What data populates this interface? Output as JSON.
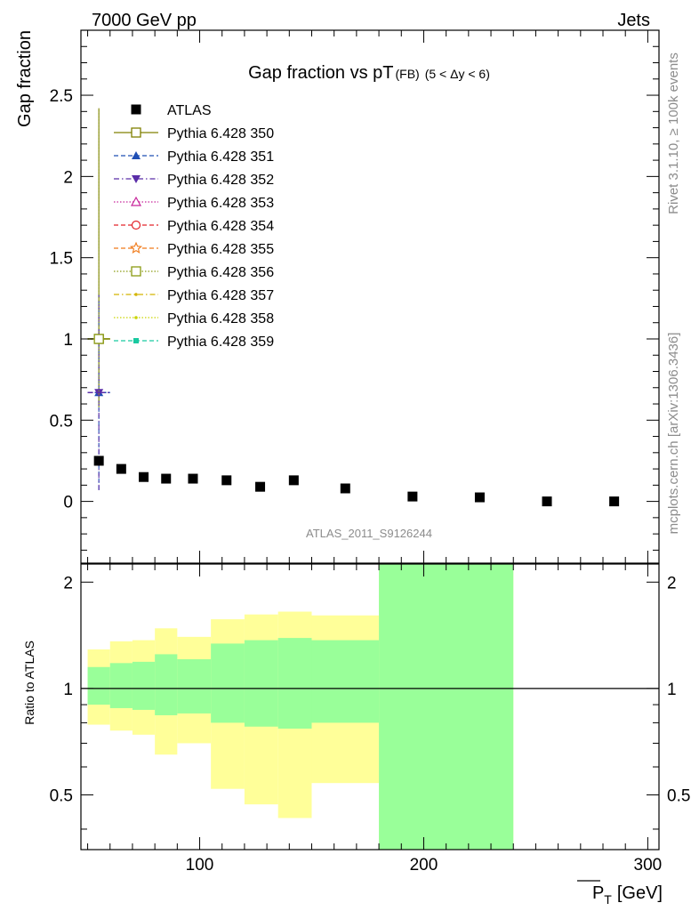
{
  "header": {
    "energy_label": "7000 GeV pp",
    "process_label": "Jets"
  },
  "side_labels": {
    "rivet": "Rivet 3.1.10, ≥ 100k events",
    "mcplots": "mcplots.cern.ch [arXiv:1306.3436]"
  },
  "watermark": "ATLAS_2011_S9126244",
  "colors": {
    "yellow_band": "#ffff99",
    "green_band": "#99ff99"
  },
  "chart_data": [
    {
      "type": "scatter",
      "title": "Gap fraction vs pT",
      "title_sub": "(FB)",
      "title_range": "(5 < Δy < 6)",
      "ylabel": "Gap fraction",
      "xlim": [
        47,
        305
      ],
      "ylim": [
        -0.38,
        2.9
      ],
      "yticks": [
        "0",
        "0.5",
        "1",
        "1.5",
        "2",
        "2.5"
      ],
      "ytick_values": [
        0,
        0.5,
        1,
        1.5,
        2,
        2.5
      ],
      "legend_position": "upper-left",
      "series": [
        {
          "name": "ATLAS",
          "color": "#000000",
          "marker": "filled-square",
          "x": [
            55,
            65,
            75,
            85,
            97,
            112,
            127,
            142,
            165,
            195,
            225,
            255,
            285
          ],
          "y": [
            0.25,
            0.2,
            0.15,
            0.14,
            0.14,
            0.13,
            0.09,
            0.13,
            0.08,
            0.03,
            0.025,
            0.0,
            0.0
          ],
          "yerr": [
            0.03,
            0.02,
            0.02,
            0.02,
            0.02,
            0.02,
            0.015,
            0.02,
            0.015,
            0.01,
            0.01,
            0.01,
            0.01
          ]
        },
        {
          "name": "Pythia 6.428 350",
          "color": "#808000",
          "marker": "open-square",
          "dash": "solid",
          "x": [
            55
          ],
          "y": [
            1.0
          ],
          "yerr_low": [
            0.42
          ],
          "yerr_high": [
            1.42
          ]
        },
        {
          "name": "Pythia 6.428 351",
          "color": "#1f4fb5",
          "marker": "filled-triangle-up",
          "dash": "dashed",
          "x": [
            55
          ],
          "y": [
            0.67
          ],
          "yerr_low": [
            0.6
          ],
          "yerr_high": [
            0.6
          ]
        },
        {
          "name": "Pythia 6.428 352",
          "color": "#5a2da8",
          "marker": "filled-triangle-down",
          "dash": "dashdot",
          "x": [
            55
          ],
          "y": [
            0.67
          ],
          "yerr_low": [
            0.6
          ],
          "yerr_high": [
            0.6
          ]
        },
        {
          "name": "Pythia 6.428 353",
          "color": "#c7259b",
          "marker": "open-triangle-up",
          "dash": "dotted",
          "x": [],
          "y": []
        },
        {
          "name": "Pythia 6.428 354",
          "color": "#e3242b",
          "marker": "open-circle",
          "dash": "dashed",
          "x": [],
          "y": []
        },
        {
          "name": "Pythia 6.428 355",
          "color": "#f07a1a",
          "marker": "open-star",
          "dash": "dashed",
          "x": [],
          "y": []
        },
        {
          "name": "Pythia 6.428 356",
          "color": "#8a9a12",
          "marker": "open-square",
          "dash": "dotted",
          "x": [
            55
          ],
          "y": [
            1.0
          ],
          "yerr_low": [
            0.42
          ],
          "yerr_high": [
            1.42
          ]
        },
        {
          "name": "Pythia 6.428 357",
          "color": "#d4b400",
          "marker": "small-dot",
          "dash": "dashdot",
          "x": [],
          "y": []
        },
        {
          "name": "Pythia 6.428 358",
          "color": "#c9d400",
          "marker": "small-dot",
          "dash": "dotted",
          "x": [],
          "y": []
        },
        {
          "name": "Pythia 6.428 359",
          "color": "#19c9a0",
          "marker": "filled-square-small",
          "dash": "dashed",
          "x": [],
          "y": []
        }
      ]
    },
    {
      "type": "area",
      "title": "",
      "xlabel": "P_T [GeV]",
      "xlabel_main": "P",
      "xlabel_sub": "T",
      "xlabel_unit": "[GeV]",
      "ylabel": "Ratio to ATLAS",
      "xlim": [
        47,
        305
      ],
      "ylim": [
        0.35,
        2.25
      ],
      "xticks": [
        "100",
        "200",
        "300"
      ],
      "xtick_values": [
        100,
        200,
        300
      ],
      "yticks": [
        "0.5",
        "1",
        "2"
      ],
      "ytick_values": [
        0.5,
        1,
        2
      ],
      "reference_line": 1,
      "bins": [
        {
          "lo": 50,
          "hi": 60,
          "yellow": [
            0.79,
            1.29
          ],
          "green": [
            0.9,
            1.15
          ]
        },
        {
          "lo": 60,
          "hi": 70,
          "yellow": [
            0.76,
            1.36
          ],
          "green": [
            0.88,
            1.18
          ]
        },
        {
          "lo": 70,
          "hi": 80,
          "yellow": [
            0.74,
            1.37
          ],
          "green": [
            0.87,
            1.19
          ]
        },
        {
          "lo": 80,
          "hi": 90,
          "yellow": [
            0.65,
            1.48
          ],
          "green": [
            0.84,
            1.25
          ]
        },
        {
          "lo": 90,
          "hi": 105,
          "yellow": [
            0.7,
            1.4
          ],
          "green": [
            0.85,
            1.21
          ]
        },
        {
          "lo": 105,
          "hi": 120,
          "yellow": [
            0.52,
            1.57
          ],
          "green": [
            0.8,
            1.34
          ]
        },
        {
          "lo": 120,
          "hi": 135,
          "yellow": [
            0.47,
            1.62
          ],
          "green": [
            0.78,
            1.37
          ]
        },
        {
          "lo": 135,
          "hi": 150,
          "yellow": [
            0.43,
            1.65
          ],
          "green": [
            0.77,
            1.39
          ]
        },
        {
          "lo": 150,
          "hi": 180,
          "yellow": [
            0.54,
            1.61
          ],
          "green": [
            0.8,
            1.37
          ]
        },
        {
          "lo": 180,
          "hi": 240,
          "yellow": [
            0.3,
            2.6
          ],
          "green": [
            0.3,
            2.6
          ]
        }
      ]
    }
  ]
}
